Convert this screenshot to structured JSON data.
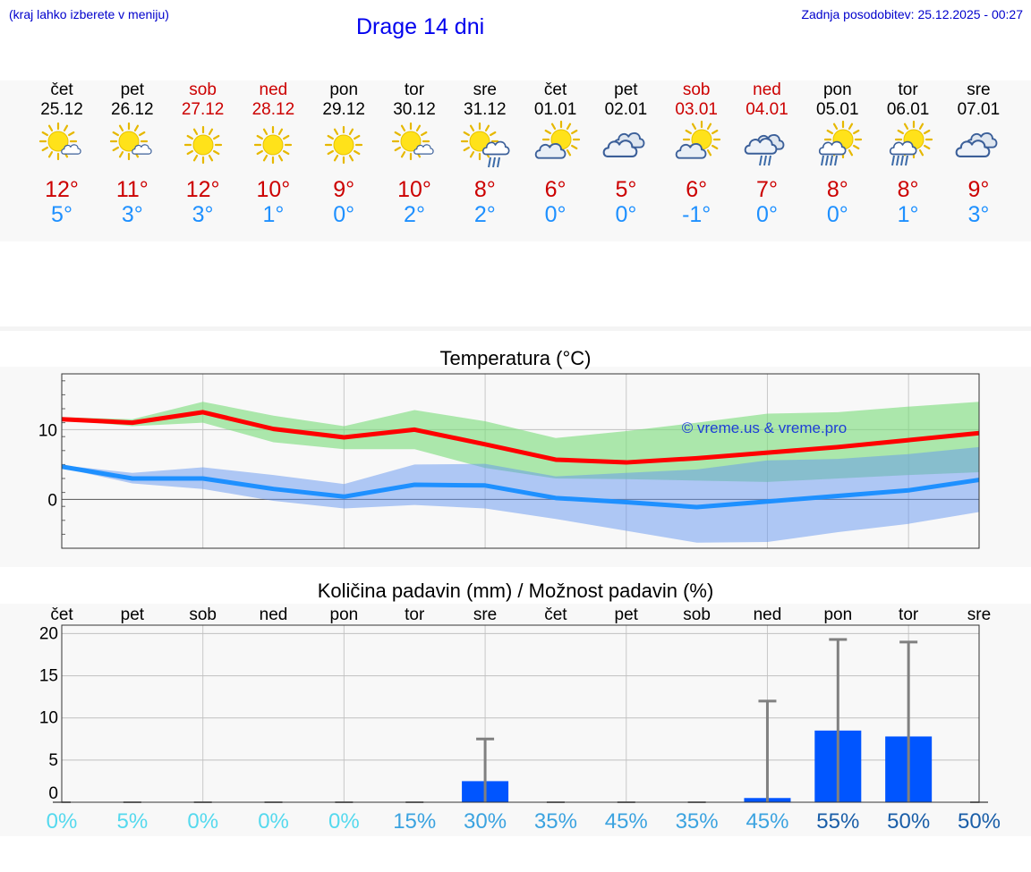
{
  "header": {
    "location_hint": "(kraj lahko izberete v meniju)",
    "title": "Drage 14 dni",
    "last_update": "Zadnja posodobitev: 25.12.2025 - 00:27"
  },
  "days": [
    {
      "name": "čet",
      "date": "25.12",
      "weekend": false,
      "icon": "sun-cloud-icon",
      "tmax": "12°",
      "tmin": "5°"
    },
    {
      "name": "pet",
      "date": "26.12",
      "weekend": false,
      "icon": "sun-cloud-icon",
      "tmax": "11°",
      "tmin": "3°"
    },
    {
      "name": "sob",
      "date": "27.12",
      "weekend": true,
      "icon": "sun-icon",
      "tmax": "12°",
      "tmin": "3°"
    },
    {
      "name": "ned",
      "date": "28.12",
      "weekend": true,
      "icon": "sun-icon",
      "tmax": "10°",
      "tmin": "1°"
    },
    {
      "name": "pon",
      "date": "29.12",
      "weekend": false,
      "icon": "sun-icon",
      "tmax": "9°",
      "tmin": "0°"
    },
    {
      "name": "tor",
      "date": "30.12",
      "weekend": false,
      "icon": "sun-cloud-icon",
      "tmax": "10°",
      "tmin": "2°"
    },
    {
      "name": "sre",
      "date": "31.12",
      "weekend": false,
      "icon": "sun-cloud-rain-icon",
      "tmax": "8°",
      "tmin": "2°"
    },
    {
      "name": "čet",
      "date": "01.01",
      "weekend": false,
      "icon": "sun-big-cloud-icon",
      "tmax": "6°",
      "tmin": "0°"
    },
    {
      "name": "pet",
      "date": "02.01",
      "weekend": false,
      "icon": "cloudy-icon",
      "tmax": "5°",
      "tmin": "0°"
    },
    {
      "name": "sob",
      "date": "03.01",
      "weekend": true,
      "icon": "sun-big-cloud-icon",
      "tmax": "6°",
      "tmin": "-1°"
    },
    {
      "name": "ned",
      "date": "04.01",
      "weekend": true,
      "icon": "cloud-rain-icon",
      "tmax": "7°",
      "tmin": "0°"
    },
    {
      "name": "pon",
      "date": "05.01",
      "weekend": false,
      "icon": "sun-rain-icon",
      "tmax": "8°",
      "tmin": "0°"
    },
    {
      "name": "tor",
      "date": "06.01",
      "weekend": false,
      "icon": "sun-rain-icon",
      "tmax": "8°",
      "tmin": "1°"
    },
    {
      "name": "sre",
      "date": "07.01",
      "weekend": false,
      "icon": "cloudy-icon",
      "tmax": "9°",
      "tmin": "3°"
    }
  ],
  "chart_data": [
    {
      "type": "line",
      "title": "Temperatura (°C)",
      "watermark": "© vreme.us & vreme.pro",
      "xlabel": "",
      "ylabel": "",
      "ylim": [
        -7,
        18
      ],
      "yticks": [
        0,
        10
      ],
      "x": [
        0,
        1,
        2,
        3,
        4,
        5,
        6,
        7,
        8,
        9,
        10,
        11,
        12,
        13
      ],
      "series": [
        {
          "name": "max",
          "color": "#ff0000",
          "values": [
            11.5,
            11.0,
            12.5,
            10.1,
            8.9,
            10.0,
            7.9,
            5.7,
            5.3,
            5.9,
            6.7,
            7.5,
            8.5,
            9.5
          ],
          "band_low": [
            11.4,
            10.5,
            11.0,
            8.2,
            7.2,
            7.2,
            4.5,
            3.0,
            2.9,
            2.7,
            2.5,
            3.0,
            3.5,
            3.9
          ],
          "band_high": [
            11.8,
            11.5,
            14.0,
            12.0,
            10.5,
            12.8,
            11.2,
            8.8,
            9.8,
            11.0,
            12.3,
            12.5,
            13.3,
            14.0
          ]
        },
        {
          "name": "min",
          "color": "#1e90ff",
          "values": [
            4.7,
            3.0,
            3.0,
            1.5,
            0.4,
            2.1,
            2.0,
            0.2,
            -0.4,
            -1.1,
            -0.3,
            0.5,
            1.3,
            2.8
          ],
          "band_low": [
            4.5,
            2.3,
            1.5,
            -0.2,
            -1.3,
            -0.8,
            -1.3,
            -2.8,
            -4.5,
            -6.2,
            -6.1,
            -4.7,
            -3.5,
            -1.8
          ],
          "band_high": [
            4.9,
            3.8,
            4.6,
            3.5,
            2.2,
            5.0,
            5.1,
            3.3,
            3.8,
            4.3,
            5.6,
            5.8,
            6.5,
            7.5
          ]
        }
      ]
    },
    {
      "type": "bar",
      "title": "Količina padavin (mm) / Možnost padavin (%)",
      "categories": [
        "čet",
        "pet",
        "sob",
        "ned",
        "pon",
        "tor",
        "sre",
        "čet",
        "pet",
        "sob",
        "ned",
        "pon",
        "tor",
        "sre"
      ],
      "ylim": [
        0,
        21
      ],
      "yticks": [
        0,
        5,
        10,
        15,
        20
      ],
      "values": [
        0,
        0,
        0,
        0,
        0,
        0,
        2.5,
        0,
        0,
        0,
        0.5,
        8.5,
        7.8,
        0
      ],
      "error_high": [
        0,
        0,
        0,
        0,
        0,
        0,
        7.5,
        0,
        0,
        0,
        12.0,
        19.3,
        19.0,
        0
      ],
      "probability": [
        "0%",
        "5%",
        "0%",
        "0%",
        "0%",
        "15%",
        "30%",
        "35%",
        "45%",
        "35%",
        "45%",
        "55%",
        "50%",
        "50%"
      ],
      "probability_colors": [
        "#55d9ee",
        "#55d9ee",
        "#55d9ee",
        "#55d9ee",
        "#55d9ee",
        "#3ba3e0",
        "#3ba3e0",
        "#3ba3e0",
        "#3ba3e0",
        "#3ba3e0",
        "#3ba3e0",
        "#1a5ea8",
        "#1a5ea8",
        "#1a5ea8"
      ],
      "bar_color": "#0055ff",
      "error_color": "#808080"
    }
  ]
}
